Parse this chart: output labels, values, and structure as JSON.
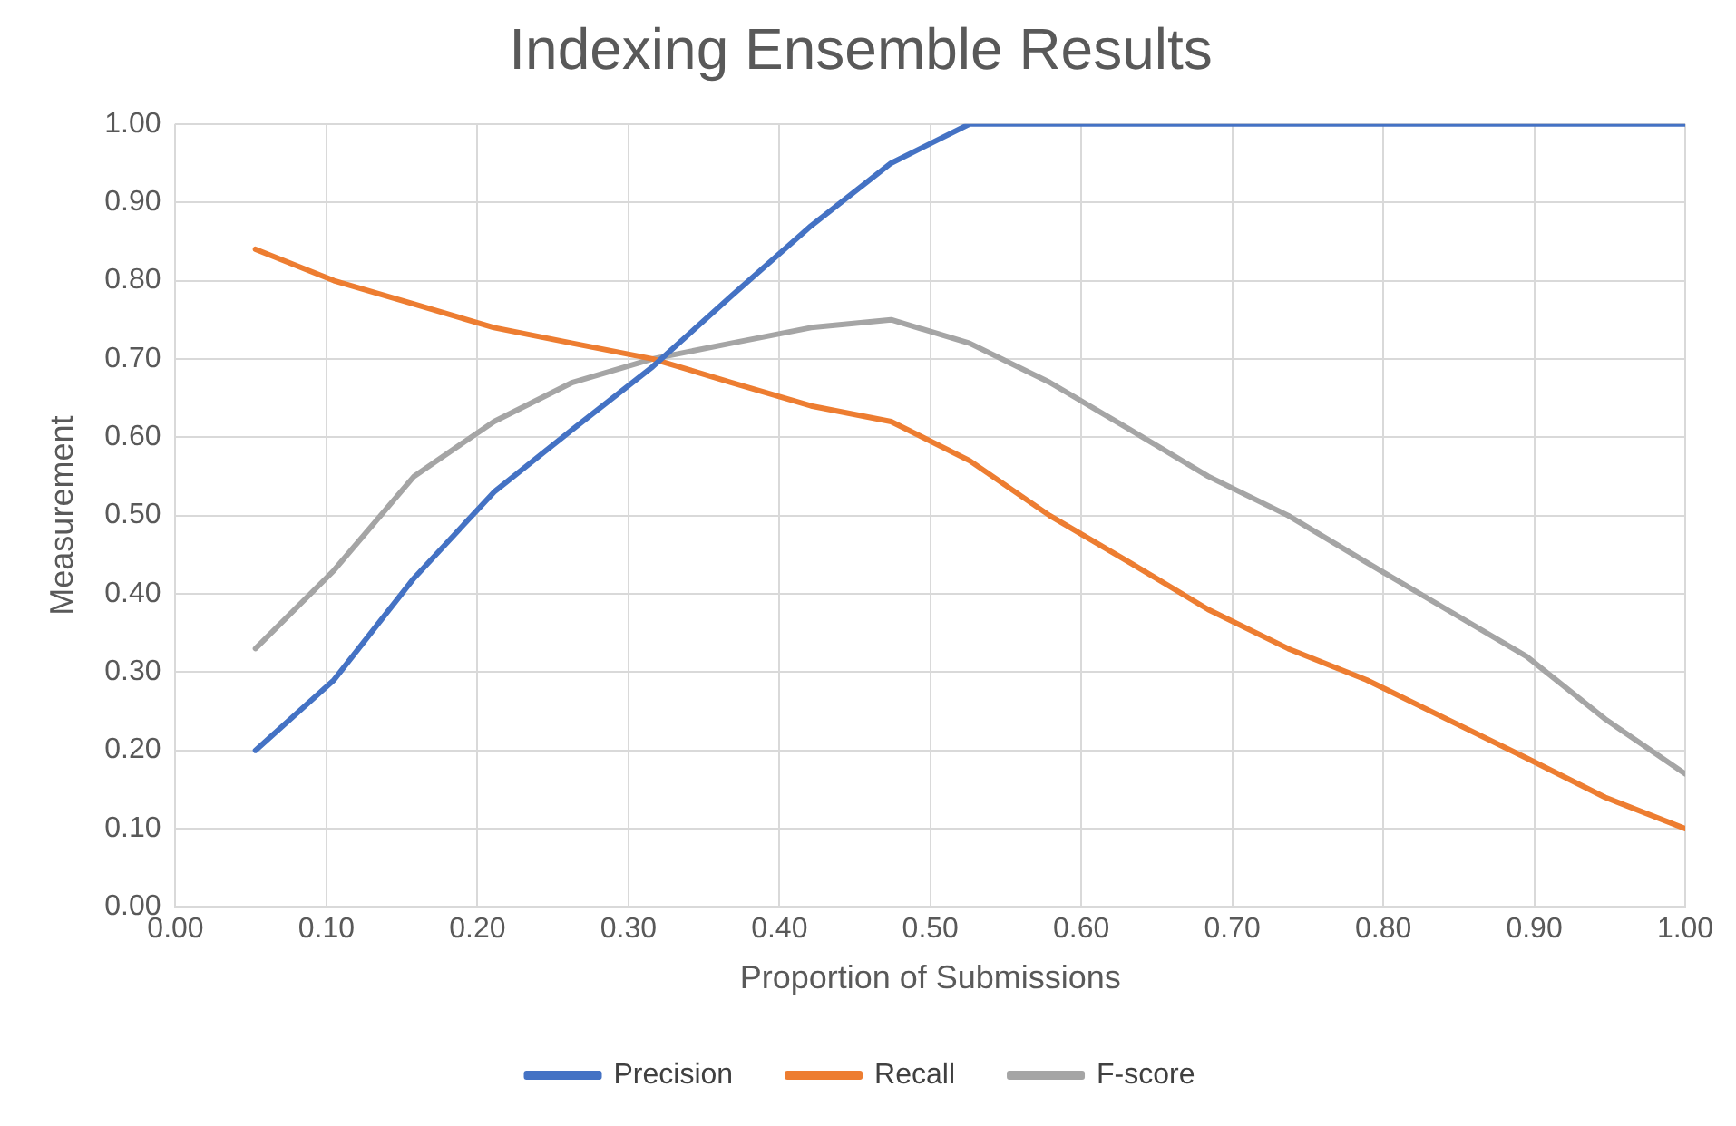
{
  "chart_data": {
    "type": "line",
    "title": "Indexing Ensemble Results",
    "xlabel": "Proportion of Submissions",
    "ylabel": "Measurement",
    "x": [
      0.053,
      0.105,
      0.158,
      0.211,
      0.263,
      0.316,
      0.368,
      0.421,
      0.474,
      0.526,
      0.579,
      0.632,
      0.684,
      0.737,
      0.789,
      0.842,
      0.895,
      0.947,
      1.0
    ],
    "series": [
      {
        "name": "Precision",
        "color": "#4472c4",
        "values": [
          0.2,
          0.29,
          0.42,
          0.53,
          0.61,
          0.69,
          0.78,
          0.87,
          0.95,
          1.0,
          1.0,
          1.0,
          1.0,
          1.0,
          1.0,
          1.0,
          1.0,
          1.0,
          1.0
        ]
      },
      {
        "name": "Recall",
        "color": "#ed7d31",
        "values": [
          0.84,
          0.8,
          0.77,
          0.74,
          0.72,
          0.7,
          0.67,
          0.64,
          0.62,
          0.57,
          0.5,
          0.44,
          0.38,
          0.33,
          0.29,
          0.24,
          0.19,
          0.14,
          0.1
        ]
      },
      {
        "name": "F-score",
        "color": "#a5a5a5",
        "values": [
          0.33,
          0.43,
          0.55,
          0.62,
          0.67,
          0.7,
          0.72,
          0.74,
          0.75,
          0.72,
          0.67,
          0.61,
          0.55,
          0.5,
          0.44,
          0.38,
          0.32,
          0.24,
          0.17
        ]
      }
    ],
    "xlim": [
      0,
      1
    ],
    "ylim": [
      0,
      1
    ],
    "xticks": [
      {
        "value": 0,
        "label": "0.00"
      },
      {
        "value": 0.1,
        "label": "0.10"
      },
      {
        "value": 0.2,
        "label": "0.20"
      },
      {
        "value": 0.3,
        "label": "0.30"
      },
      {
        "value": 0.4,
        "label": "0.40"
      },
      {
        "value": 0.5,
        "label": "0.50"
      },
      {
        "value": 0.6,
        "label": "0.60"
      },
      {
        "value": 0.7,
        "label": "0.70"
      },
      {
        "value": 0.8,
        "label": "0.80"
      },
      {
        "value": 0.9,
        "label": "0.90"
      },
      {
        "value": 1,
        "label": "1.00"
      }
    ],
    "yticks": [
      {
        "value": 0,
        "label": "0.00"
      },
      {
        "value": 0.1,
        "label": "0.10"
      },
      {
        "value": 0.2,
        "label": "0.20"
      },
      {
        "value": 0.3,
        "label": "0.30"
      },
      {
        "value": 0.4,
        "label": "0.40"
      },
      {
        "value": 0.5,
        "label": "0.50"
      },
      {
        "value": 0.6,
        "label": "0.60"
      },
      {
        "value": 0.7,
        "label": "0.70"
      },
      {
        "value": 0.8,
        "label": "0.80"
      },
      {
        "value": 0.9,
        "label": "0.90"
      },
      {
        "value": 1,
        "label": "1.00"
      }
    ],
    "grid": true,
    "legend": "bottom",
    "marker": "none",
    "line_style": "solid"
  }
}
